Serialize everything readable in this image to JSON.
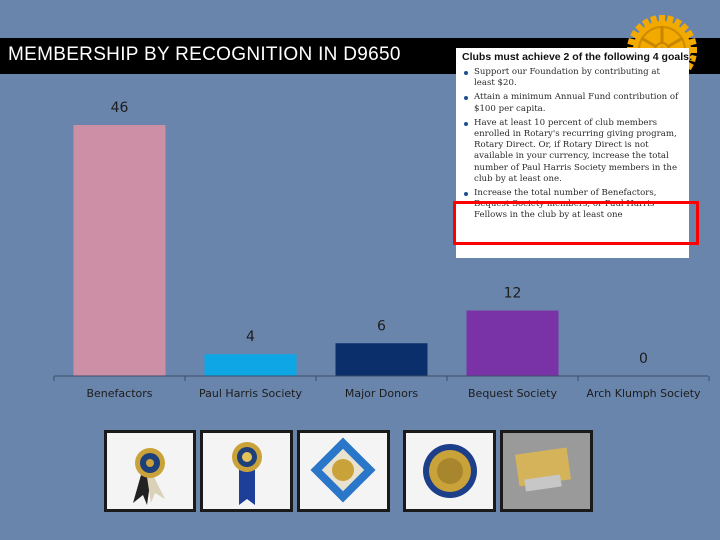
{
  "title": "MEMBERSHIP BY RECOGNITION IN D9650",
  "goals_box": {
    "heading": "Clubs must achieve 2 of the following 4 goals:",
    "items": [
      "Support our Foundation by contributing at least $20.",
      "Attain a minimum Annual Fund contribution of $100 per capita.",
      "Have at least 10 percent of club members enrolled in Rotary's recurring giving program, Rotary Direct. Or, if Rotary Direct is not available in your currency, increase the total number of Paul Harris Society members in the club by at least one.",
      "Increase the total number of Benefactors, Bequest Society members, or Paul Harris Fellows in the club by at least one"
    ]
  },
  "colors": {
    "background": "#6a85ac",
    "title_bar": "#000000",
    "highlight": "#ff0000",
    "bars": [
      "#cc8fa6",
      "#0fa6e6",
      "#0b2f6b",
      "#7a33a6",
      "#7a33a6"
    ]
  },
  "chart_data": {
    "type": "bar",
    "categories": [
      "Benefactors",
      "Paul Harris Society",
      "Major Donors",
      "Bequest Society",
      "Arch Klumph Society"
    ],
    "values": [
      46,
      4,
      6,
      12,
      0
    ],
    "value_labels": [
      "46",
      "4",
      "6",
      "12",
      "0"
    ],
    "ylim": [
      0,
      46
    ],
    "grid": false,
    "legend": "none"
  },
  "pins": [
    {
      "name": "benefactor-pin-image"
    },
    {
      "name": "paul-harris-society-pin-image"
    },
    {
      "name": "major-donor-pin-image"
    },
    {
      "name": "bequest-society-pin-image"
    },
    {
      "name": "arch-klumph-society-pin-image"
    }
  ],
  "logo": {
    "name": "rotary-wheel-logo"
  }
}
